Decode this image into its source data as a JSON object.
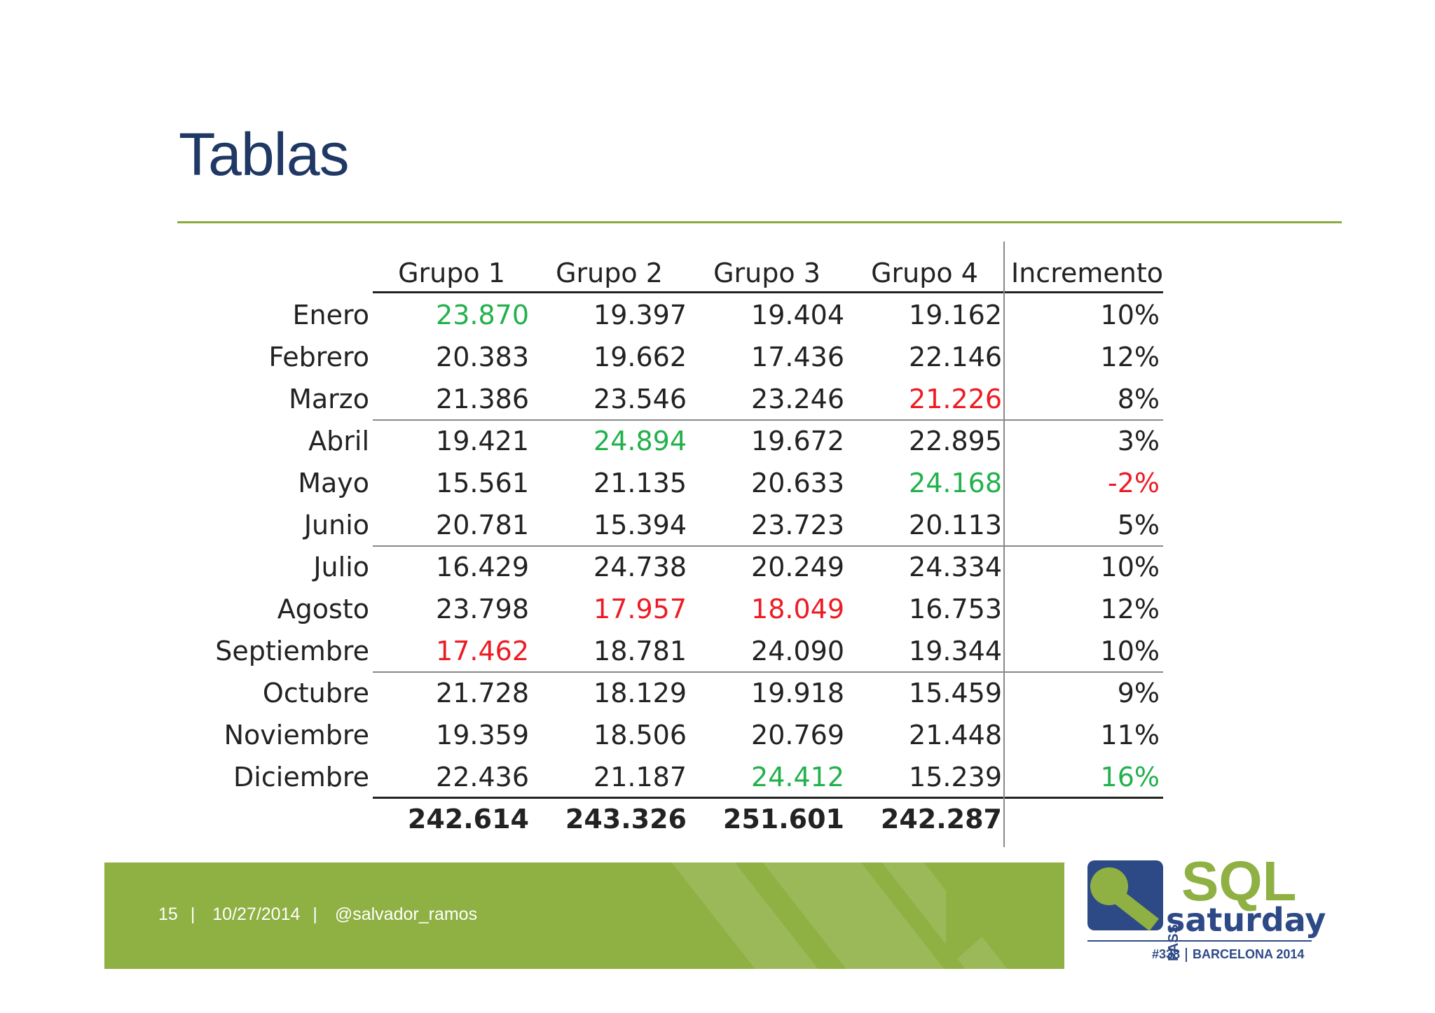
{
  "title": "Tablas",
  "table": {
    "headers": [
      "",
      "Grupo 1",
      "Grupo 2",
      "Grupo 3",
      "Grupo 4",
      "Incremento"
    ],
    "rows": [
      {
        "month": "Enero",
        "g1": "23.870",
        "g2": "19.397",
        "g3": "19.404",
        "g4": "19.162",
        "inc": "10%"
      },
      {
        "month": "Febrero",
        "g1": "20.383",
        "g2": "19.662",
        "g3": "17.436",
        "g4": "22.146",
        "inc": "12%"
      },
      {
        "month": "Marzo",
        "g1": "21.386",
        "g2": "23.546",
        "g3": "23.246",
        "g4": "21.226",
        "inc": "8%"
      },
      {
        "month": "Abril",
        "g1": "19.421",
        "g2": "24.894",
        "g3": "19.672",
        "g4": "22.895",
        "inc": "3%"
      },
      {
        "month": "Mayo",
        "g1": "15.561",
        "g2": "21.135",
        "g3": "20.633",
        "g4": "24.168",
        "inc": "-2%"
      },
      {
        "month": "Junio",
        "g1": "20.781",
        "g2": "15.394",
        "g3": "23.723",
        "g4": "20.113",
        "inc": "5%"
      },
      {
        "month": "Julio",
        "g1": "16.429",
        "g2": "24.738",
        "g3": "20.249",
        "g4": "24.334",
        "inc": "10%"
      },
      {
        "month": "Agosto",
        "g1": "23.798",
        "g2": "17.957",
        "g3": "18.049",
        "g4": "16.753",
        "inc": "12%"
      },
      {
        "month": "Septiembre",
        "g1": "17.462",
        "g2": "18.781",
        "g3": "24.090",
        "g4": "19.344",
        "inc": "10%"
      },
      {
        "month": "Octubre",
        "g1": "21.728",
        "g2": "18.129",
        "g3": "19.918",
        "g4": "15.459",
        "inc": "9%"
      },
      {
        "month": "Noviembre",
        "g1": "19.359",
        "g2": "18.506",
        "g3": "20.769",
        "g4": "21.448",
        "inc": "11%"
      },
      {
        "month": "Diciembre",
        "g1": "22.436",
        "g2": "21.187",
        "g3": "24.412",
        "g4": "15.239",
        "inc": "16%"
      }
    ],
    "totals": {
      "g1": "242.614",
      "g2": "243.326",
      "g3": "251.601",
      "g4": "242.287"
    },
    "highlights": {
      "green": [
        "0.g1",
        "3.g2",
        "4.g4",
        "11.g3",
        "11.inc"
      ],
      "red": [
        "2.g4",
        "4.inc",
        "7.g2",
        "7.g3",
        "8.g1"
      ]
    },
    "colors": {
      "green": "#22b14c",
      "red": "#ed1c24"
    }
  },
  "footer": {
    "page": "15",
    "date": "10/27/2014",
    "handle": "@salvador_ramos",
    "separator": "|"
  },
  "logo": {
    "pass": "PASS",
    "sql": "SQL",
    "saturday": "saturday",
    "event_number": "#338",
    "event_place": "BARCELONA 2014"
  },
  "colors": {
    "title": "#1f3864",
    "accent_green": "#8fb043",
    "logo_blue": "#2e4a86"
  }
}
